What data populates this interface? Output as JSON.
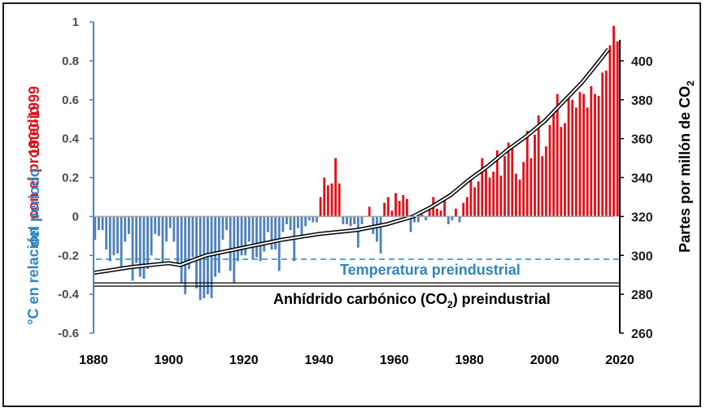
{
  "chart_data": {
    "type": "bar",
    "x_ticks": [
      "1880",
      "1900",
      "1920",
      "1940",
      "1960",
      "1980",
      "2000",
      "2020"
    ],
    "xlim": [
      1880,
      2020
    ],
    "left_axis": {
      "label_line1_part_blue": "°C en relación",
      "label_line1_part_red": "con el promedio",
      "label_line2_part_blue": "del periodo",
      "label_line2_part_red": "1900-1999",
      "ticks": [
        "1",
        "0.8",
        "0.6",
        "0.4",
        "0.2",
        "0",
        "-0.2",
        "-0.4",
        "-0.6"
      ],
      "ylim": [
        -0.6,
        1.0
      ]
    },
    "right_axis": {
      "label": "Partes por millón de CO",
      "label_subscript": "2",
      "ticks": [
        "400",
        "380",
        "360",
        "340",
        "320",
        "300",
        "280",
        "260"
      ],
      "ylim": [
        260,
        420
      ]
    },
    "annotations": {
      "preindustrial_temp": "Temperatura preindustrial",
      "preindustrial_co2_a": "Anhídrido carbónico (CO",
      "preindustrial_co2_sub": "2",
      "preindustrial_co2_b": ") preindustrial"
    },
    "reference_lines": {
      "preindustrial_temp": -0.22,
      "preindustrial_co2_ppm": 285
    },
    "colors": {
      "negative": "#4f81bd",
      "positive": "#e0121b",
      "temp_label": "#2e86c1",
      "left_label_blue": "#2e86c1",
      "left_label_red": "#d9131c",
      "co2_line": "#000000"
    },
    "temperature_anomaly": {
      "start_year": 1880,
      "values": [
        -0.12,
        -0.07,
        -0.07,
        -0.17,
        -0.23,
        -0.2,
        -0.19,
        -0.26,
        -0.13,
        -0.09,
        -0.33,
        -0.24,
        -0.31,
        -0.32,
        -0.27,
        -0.2,
        -0.09,
        -0.1,
        -0.25,
        -0.13,
        -0.06,
        -0.13,
        -0.24,
        -0.34,
        -0.4,
        -0.27,
        -0.21,
        -0.37,
        -0.43,
        -0.42,
        -0.4,
        -0.42,
        -0.31,
        -0.29,
        -0.12,
        -0.07,
        -0.28,
        -0.34,
        -0.23,
        -0.2,
        -0.2,
        -0.13,
        -0.22,
        -0.21,
        -0.23,
        -0.18,
        -0.08,
        -0.17,
        -0.17,
        -0.28,
        -0.08,
        -0.04,
        -0.07,
        -0.23,
        -0.06,
        -0.11,
        -0.05,
        -0.02,
        -0.03,
        -0.03,
        0.1,
        0.2,
        0.16,
        0.17,
        0.3,
        0.17,
        -0.04,
        -0.04,
        -0.05,
        -0.04,
        -0.16,
        -0.04,
        0.0,
        0.05,
        -0.09,
        -0.13,
        -0.19,
        0.07,
        0.1,
        0.03,
        0.12,
        0.08,
        0.11,
        0.09,
        -0.08,
        -0.03,
        -0.03,
        0.01,
        -0.02,
        0.05,
        0.1,
        0.04,
        0.03,
        0.1,
        -0.04,
        -0.02,
        0.04,
        -0.03,
        0.07,
        0.1,
        0.2,
        0.15,
        0.18,
        0.3,
        0.24,
        0.2,
        0.23,
        0.34,
        0.21,
        0.31,
        0.38,
        0.35,
        0.22,
        0.19,
        0.28,
        0.44,
        0.3,
        0.42,
        0.52,
        0.31,
        0.36,
        0.47,
        0.55,
        0.63,
        0.46,
        0.48,
        0.61,
        0.6,
        0.56,
        0.64,
        0.63,
        0.56,
        0.67,
        0.63,
        0.62,
        0.74,
        0.75,
        0.88,
        0.98,
        0.9
      ]
    },
    "co2_ppm": {
      "years": [
        1880,
        1890,
        1900,
        1903,
        1910,
        1920,
        1930,
        1940,
        1950,
        1958,
        1965,
        1970,
        1975,
        1980,
        1985,
        1990,
        1995,
        2000,
        2005,
        2010,
        2015,
        2017
      ],
      "values": [
        291,
        294,
        296,
        295,
        300,
        304,
        308,
        311,
        313,
        316,
        320,
        325,
        331,
        339,
        346,
        354,
        361,
        369,
        379,
        389,
        401,
        406
      ]
    }
  }
}
